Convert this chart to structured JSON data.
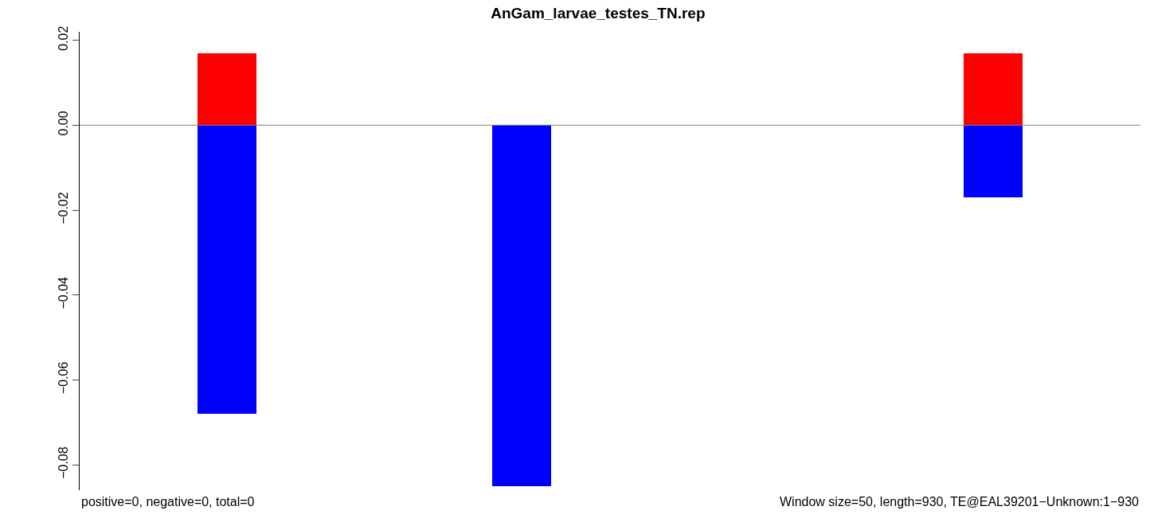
{
  "chart_data": {
    "type": "bar",
    "title": "AnGam_larvae_testes_TN.rep",
    "categories": [
      null,
      null,
      null,
      null,
      null,
      null,
      null,
      null,
      null,
      null,
      null,
      null,
      null,
      null,
      null,
      null,
      null,
      null
    ],
    "series": [
      {
        "color": "#ff0000",
        "values": [
          null,
          null,
          0.017,
          null,
          null,
          null,
          null,
          null,
          null,
          null,
          null,
          null,
          null,
          null,
          null,
          0.017,
          null,
          null
        ]
      },
      {
        "color": "#0000ff",
        "values": [
          null,
          null,
          -0.068,
          null,
          null,
          null,
          null,
          null,
          null,
          null,
          null,
          null,
          null,
          null,
          null,
          -0.017,
          null,
          null
        ]
      },
      {
        "color": "#0000ff",
        "values": [
          null,
          null,
          null,
          null,
          null,
          null,
          null,
          -0.085,
          null,
          null,
          null,
          null,
          null,
          null,
          null,
          null,
          null,
          null
        ]
      }
    ],
    "stacked": true,
    "ylim": [
      -0.086,
      0.022
    ],
    "yticks": [
      {
        "value": 0.02,
        "label": "0.02"
      },
      {
        "value": 0,
        "label": "0.00"
      },
      {
        "value": -0.02,
        "label": "−0.02"
      },
      {
        "value": -0.04,
        "label": "−0.04"
      },
      {
        "value": -0.06,
        "label": "−0.06"
      },
      {
        "value": -0.08,
        "label": "−0.08"
      }
    ],
    "tick_labels": "y",
    "ref_lines": [
      {
        "axis": "y",
        "value": 0,
        "color": "#808080"
      }
    ],
    "annotations": [
      "positive=0, negative=0, total=0",
      "Window size=50, length=930, TE@EAL39201−Unknown:1−930"
    ]
  }
}
